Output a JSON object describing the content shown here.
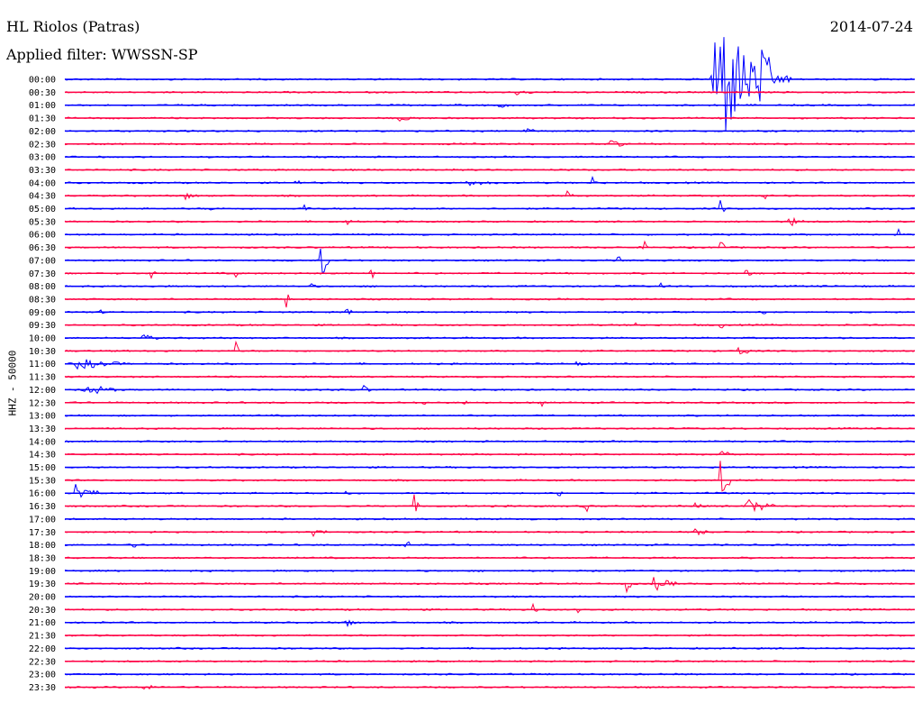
{
  "header": {
    "station": "HL Riolos (Patras)",
    "filter": "Applied filter: WWSSN-SP",
    "date": "2014-07-24",
    "channel": "HHZ - 50000"
  },
  "colors": {
    "even_trace": "#0000ff",
    "odd_trace": "#ff0044"
  },
  "chart_data": {
    "type": "line",
    "title": "HL Riolos (Patras)",
    "subtitle": "Applied filter: WWSSN-SP",
    "ylabel": "HHZ - 50000",
    "xlabel": "",
    "rows": [
      "00:00",
      "00:30",
      "01:00",
      "01:30",
      "02:00",
      "02:30",
      "03:00",
      "03:30",
      "04:00",
      "04:30",
      "05:00",
      "05:30",
      "06:00",
      "06:30",
      "07:00",
      "07:30",
      "08:00",
      "08:30",
      "09:00",
      "09:30",
      "10:00",
      "10:30",
      "11:00",
      "11:30",
      "12:00",
      "12:30",
      "13:00",
      "13:30",
      "14:00",
      "14:30",
      "15:00",
      "15:30",
      "16:00",
      "16:30",
      "17:00",
      "17:30",
      "18:00",
      "18:30",
      "19:00",
      "19:30",
      "20:00",
      "20:30",
      "21:00",
      "21:30",
      "22:00",
      "22:30",
      "23:00",
      "23:30"
    ],
    "row_minutes": 30,
    "series_colors": [
      "blue",
      "red"
    ],
    "events": [
      {
        "row": 0,
        "t": 0.76,
        "amp": 90,
        "dur": 0.07
      },
      {
        "row": 0,
        "t": 0.815,
        "amp": 18,
        "dur": 0.04
      },
      {
        "row": 1,
        "t": 0.53,
        "amp": 4,
        "dur": 0.02
      },
      {
        "row": 2,
        "t": 0.51,
        "amp": 3,
        "dur": 0.015
      },
      {
        "row": 3,
        "t": 0.39,
        "amp": 3,
        "dur": 0.03
      },
      {
        "row": 4,
        "t": 0.54,
        "amp": 4,
        "dur": 0.015
      },
      {
        "row": 5,
        "t": 0.64,
        "amp": 5,
        "dur": 0.02
      },
      {
        "row": 8,
        "t": 0.27,
        "amp": 4,
        "dur": 0.01
      },
      {
        "row": 8,
        "t": 0.47,
        "amp": 3,
        "dur": 0.04
      },
      {
        "row": 8,
        "t": 0.62,
        "amp": 9,
        "dur": 0.01
      },
      {
        "row": 9,
        "t": 0.14,
        "amp": 5,
        "dur": 0.015
      },
      {
        "row": 9,
        "t": 0.59,
        "amp": 5,
        "dur": 0.01
      },
      {
        "row": 9,
        "t": 0.82,
        "amp": 7,
        "dur": 0.008
      },
      {
        "row": 10,
        "t": 0.17,
        "amp": 4,
        "dur": 0.005
      },
      {
        "row": 10,
        "t": 0.28,
        "amp": 5,
        "dur": 0.01
      },
      {
        "row": 10,
        "t": 0.77,
        "amp": 15,
        "dur": 0.006
      },
      {
        "row": 11,
        "t": 0.33,
        "amp": 4,
        "dur": 0.01
      },
      {
        "row": 11,
        "t": 0.85,
        "amp": 6,
        "dur": 0.02
      },
      {
        "row": 12,
        "t": 0.98,
        "amp": 5,
        "dur": 0.008
      },
      {
        "row": 13,
        "t": 0.68,
        "amp": 12,
        "dur": 0.006
      },
      {
        "row": 13,
        "t": 0.77,
        "amp": 14,
        "dur": 0.008
      },
      {
        "row": 14,
        "t": 0.3,
        "amp": 30,
        "dur": 0.01
      },
      {
        "row": 14,
        "t": 0.65,
        "amp": 6,
        "dur": 0.008
      },
      {
        "row": 15,
        "t": 0.1,
        "amp": 8,
        "dur": 0.006
      },
      {
        "row": 15,
        "t": 0.2,
        "amp": 7,
        "dur": 0.006
      },
      {
        "row": 15,
        "t": 0.36,
        "amp": 12,
        "dur": 0.006
      },
      {
        "row": 15,
        "t": 0.8,
        "amp": 5,
        "dur": 0.01
      },
      {
        "row": 16,
        "t": 0.1,
        "amp": 5,
        "dur": 0.006
      },
      {
        "row": 16,
        "t": 0.29,
        "amp": 7,
        "dur": 0.006
      },
      {
        "row": 16,
        "t": 0.7,
        "amp": 5,
        "dur": 0.006
      },
      {
        "row": 17,
        "t": 0.26,
        "amp": 12,
        "dur": 0.006
      },
      {
        "row": 18,
        "t": 0.04,
        "amp": 14,
        "dur": 0.006
      },
      {
        "row": 18,
        "t": 0.33,
        "amp": 9,
        "dur": 0.008
      },
      {
        "row": 18,
        "t": 0.82,
        "amp": 5,
        "dur": 0.006
      },
      {
        "row": 19,
        "t": 0.67,
        "amp": 5,
        "dur": 0.006
      },
      {
        "row": 19,
        "t": 0.77,
        "amp": 6,
        "dur": 0.006
      },
      {
        "row": 20,
        "t": 0.09,
        "amp": 4,
        "dur": 0.02
      },
      {
        "row": 21,
        "t": 0.2,
        "amp": 14,
        "dur": 0.006
      },
      {
        "row": 21,
        "t": 0.79,
        "amp": 6,
        "dur": 0.02
      },
      {
        "row": 22,
        "t": 0.01,
        "amp": 6,
        "dur": 0.06
      },
      {
        "row": 22,
        "t": 0.6,
        "amp": 5,
        "dur": 0.01
      },
      {
        "row": 24,
        "t": 0.02,
        "amp": 7,
        "dur": 0.04
      },
      {
        "row": 24,
        "t": 0.35,
        "amp": 6,
        "dur": 0.01
      },
      {
        "row": 25,
        "t": 0.42,
        "amp": 5,
        "dur": 0.006
      },
      {
        "row": 25,
        "t": 0.47,
        "amp": 5,
        "dur": 0.006
      },
      {
        "row": 25,
        "t": 0.56,
        "amp": 4,
        "dur": 0.006
      },
      {
        "row": 29,
        "t": 0.77,
        "amp": 12,
        "dur": 0.01
      },
      {
        "row": 31,
        "t": 0.77,
        "amp": 28,
        "dur": 0.015
      },
      {
        "row": 32,
        "t": 0.01,
        "amp": 12,
        "dur": 0.03
      },
      {
        "row": 32,
        "t": 0.33,
        "amp": 5,
        "dur": 0.006
      },
      {
        "row": 32,
        "t": 0.58,
        "amp": 5,
        "dur": 0.006
      },
      {
        "row": 33,
        "t": 0.41,
        "amp": 14,
        "dur": 0.006
      },
      {
        "row": 33,
        "t": 0.61,
        "amp": 22,
        "dur": 0.006
      },
      {
        "row": 33,
        "t": 0.74,
        "amp": 10,
        "dur": 0.008
      },
      {
        "row": 33,
        "t": 0.8,
        "amp": 8,
        "dur": 0.04
      },
      {
        "row": 35,
        "t": 0.29,
        "amp": 4,
        "dur": 0.02
      },
      {
        "row": 35,
        "t": 0.74,
        "amp": 4,
        "dur": 0.02
      },
      {
        "row": 36,
        "t": 0.08,
        "amp": 5,
        "dur": 0.006
      },
      {
        "row": 36,
        "t": 0.4,
        "amp": 14,
        "dur": 0.006
      },
      {
        "row": 39,
        "t": 0.66,
        "amp": 20,
        "dur": 0.006
      },
      {
        "row": 39,
        "t": 0.69,
        "amp": 8,
        "dur": 0.03
      },
      {
        "row": 41,
        "t": 0.55,
        "amp": 10,
        "dur": 0.006
      },
      {
        "row": 41,
        "t": 0.6,
        "amp": 9,
        "dur": 0.006
      },
      {
        "row": 42,
        "t": 0.33,
        "amp": 5,
        "dur": 0.015
      },
      {
        "row": 47,
        "t": 0.09,
        "amp": 4,
        "dur": 0.02
      }
    ]
  }
}
